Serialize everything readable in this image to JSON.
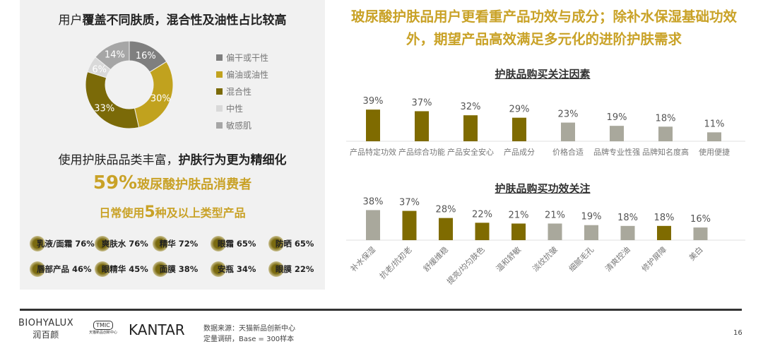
{
  "left": {
    "title_plain": "用户",
    "title_bold": "覆盖不同肤质，混合性及油性占比较高",
    "donut": {
      "type": "pie",
      "slices": [
        {
          "label": "偏干或干性",
          "value": 16,
          "text": "16%",
          "color": "#7f7f7f"
        },
        {
          "label": "偏油或油性",
          "value": 30,
          "text": "30%",
          "color": "#c1a21e"
        },
        {
          "label": "混合性",
          "value": 33,
          "text": "33%",
          "color": "#7b6a08"
        },
        {
          "label": "中性",
          "value": 6,
          "text": "6%",
          "color": "#d9d9d9"
        },
        {
          "label": "敏感肌",
          "value": 14,
          "text": "14%",
          "color": "#a6a6a6"
        }
      ]
    },
    "subtitle_plain": "使用护肤品品类丰富，",
    "subtitle_bold": "护肤行为更为精细化",
    "stat1_big": "59%",
    "stat1_text": "玻尿酸护肤品消费者",
    "stat2_a": "日常使用",
    "stat2_big": "5",
    "stat2_b": "种及以上类型产品",
    "items": [
      "乳液/面霜 76%",
      "爽肤水 76%",
      "精华 72%",
      "眼霜 65%",
      "防晒 65%",
      "唇部产品 46%",
      "眼精华 45%",
      "面膜 38%",
      "安瓶 34%",
      "眼膜 22%"
    ]
  },
  "headline": "玻尿酸护肤品用户更看重产品功效与成分；除补水保湿基础功效外，期望产品高效满足多元化的进阶护肤需求",
  "chart_data": [
    {
      "type": "bar",
      "title": "护肤品购买关注因素",
      "categories": [
        "产品特定功效",
        "产品综合功能",
        "产品安全安心",
        "产品成分",
        "价格合适",
        "品牌专业性强",
        "品牌知名度高",
        "使用便捷"
      ],
      "values": [
        39,
        37,
        32,
        29,
        23,
        19,
        18,
        11
      ],
      "highlight": [
        true,
        true,
        true,
        true,
        false,
        false,
        false,
        false
      ],
      "colors": {
        "highlight": "#7f6b00",
        "normal": "#a9a89c"
      }
    },
    {
      "type": "bar",
      "title": "护肤品购买功效关注",
      "categories": [
        "补水保湿",
        "抗老/抗初老",
        "舒缓维稳",
        "提亮/均匀肤色",
        "温和舒敏",
        "淡纹抗皱",
        "细腻毛孔",
        "清爽控油",
        "修护屏障",
        "美白"
      ],
      "values": [
        38,
        37,
        28,
        22,
        21,
        21,
        19,
        18,
        18,
        16
      ],
      "highlight": [
        false,
        true,
        true,
        true,
        true,
        false,
        false,
        false,
        true,
        false
      ],
      "colors": {
        "highlight": "#7f6b00",
        "normal": "#a9a89c"
      }
    }
  ],
  "footer": {
    "brand1": "BIOHYALUX",
    "brand1_cn": "润百颜",
    "brand2": "TMIC",
    "brand2_sub": "天猫新品创新中心",
    "brand3": "KANTAR",
    "source1": "数据来源：天猫新品创新中心",
    "source2": "定量调研，Base = 300样本",
    "page": "16"
  }
}
